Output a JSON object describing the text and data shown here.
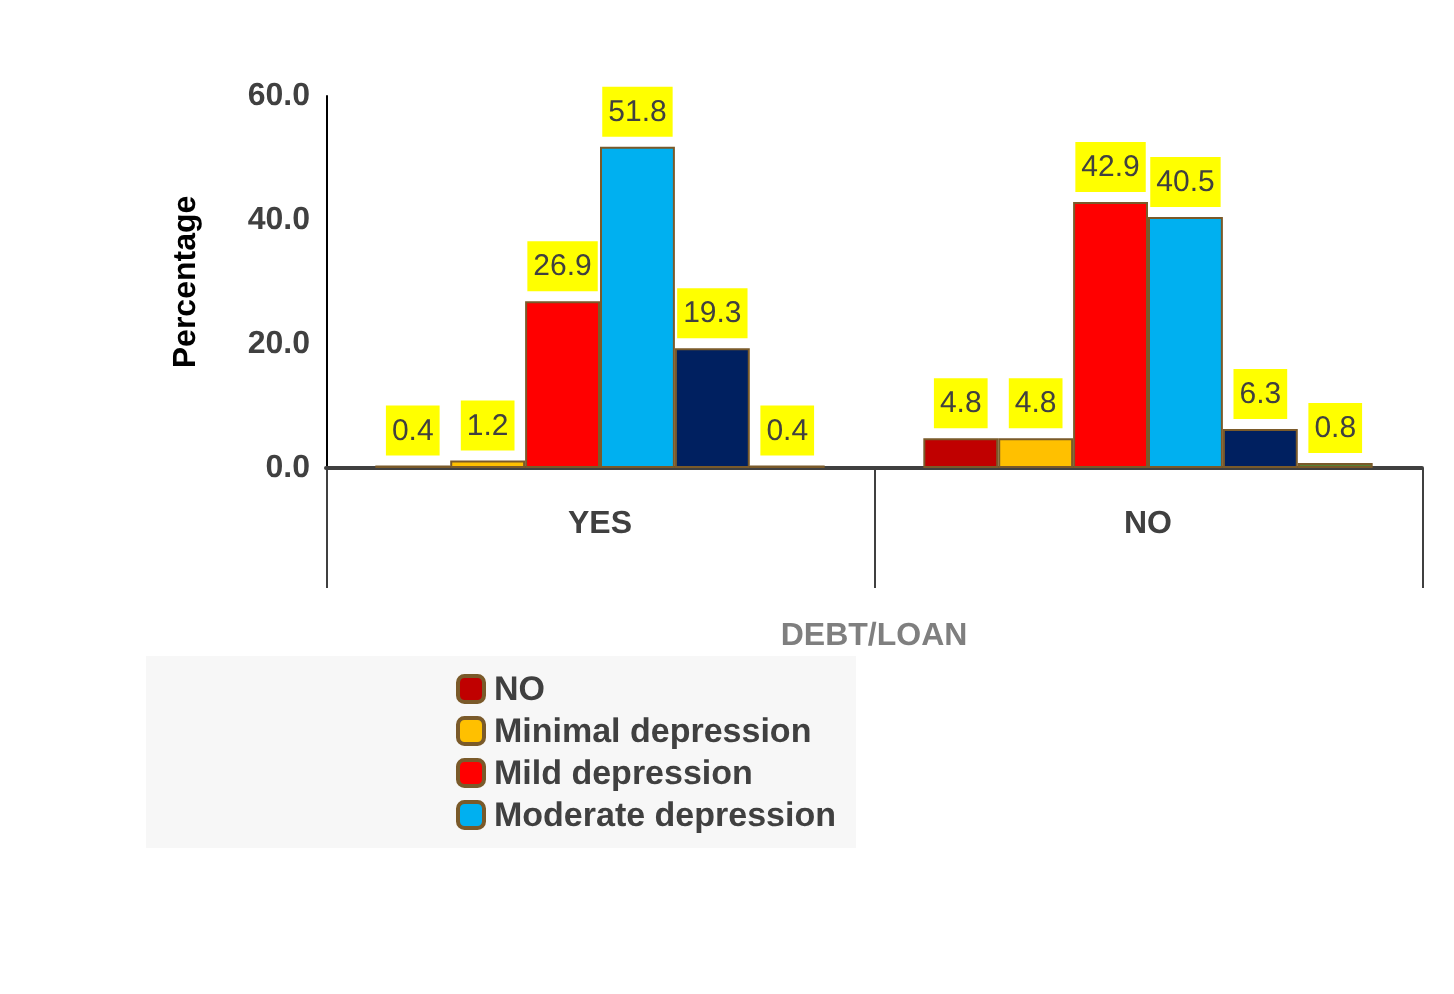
{
  "chart_data": {
    "type": "bar",
    "xlabel": "DEBT/LOAN",
    "ylabel": "Percentage",
    "categories": [
      "YES",
      "NO"
    ],
    "series": [
      {
        "name": "NO",
        "color": "#c00000",
        "values": [
          0.4,
          4.8
        ]
      },
      {
        "name": "Minimal depression",
        "color": "#ffc000",
        "values": [
          1.2,
          4.8
        ]
      },
      {
        "name": "Mild depression",
        "color": "#ff0000",
        "values": [
          26.9,
          42.9
        ]
      },
      {
        "name": "Moderate depression",
        "color": "#00b0f0",
        "values": [
          51.8,
          40.5
        ]
      },
      {
        "color": "#002060",
        "values": [
          19.3,
          6.3
        ]
      },
      {
        "color": "#548235",
        "values": [
          0.4,
          0.8
        ]
      }
    ],
    "ylim": [
      0,
      60
    ],
    "yticks": [
      {
        "value": 0,
        "label": "0.0"
      },
      {
        "value": 20,
        "label": "20.0"
      },
      {
        "value": 40,
        "label": "40.0"
      },
      {
        "value": 60,
        "label": "60.0"
      }
    ],
    "grid": false,
    "legend": "bottom",
    "data_labels": true
  }
}
